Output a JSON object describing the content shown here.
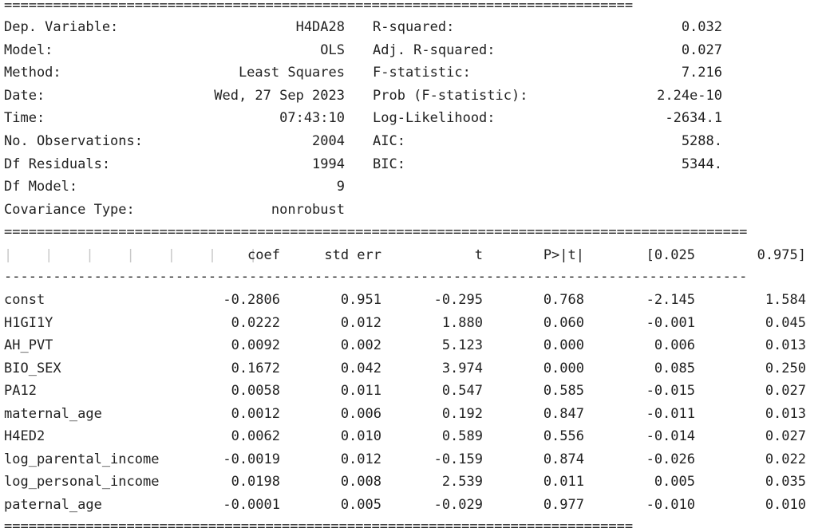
{
  "separators": {
    "double_top": "=============================================================================",
    "double_mid": "===========================================================================================",
    "dash": "-------------------------------------------------------------------------------------------",
    "double_bottom": "============================================================================="
  },
  "summary": {
    "left": [
      {
        "label": "Dep. Variable:",
        "value": "H4DA28"
      },
      {
        "label": "Model:",
        "value": "OLS"
      },
      {
        "label": "Method:",
        "value": "Least Squares"
      },
      {
        "label": "Date:",
        "value": "Wed, 27 Sep 2023"
      },
      {
        "label": "Time:",
        "value": "07:43:10"
      },
      {
        "label": "No. Observations:",
        "value": "2004"
      },
      {
        "label": "Df Residuals:",
        "value": "1994"
      },
      {
        "label": "Df Model:",
        "value": "9"
      },
      {
        "label": "Covariance Type:",
        "value": "nonrobust"
      }
    ],
    "right": [
      {
        "label": "R-squared:",
        "value": "0.032"
      },
      {
        "label": "Adj. R-squared:",
        "value": "0.027"
      },
      {
        "label": "F-statistic:",
        "value": "7.216"
      },
      {
        "label": "Prob (F-statistic):",
        "value": "2.24e-10"
      },
      {
        "label": "Log-Likelihood:",
        "value": "-2634.1"
      },
      {
        "label": "AIC:",
        "value": "5288."
      },
      {
        "label": "BIC:",
        "value": "5344."
      }
    ]
  },
  "coef_table": {
    "headers": [
      "coef",
      "std err",
      "t",
      "P>|t|",
      "[0.025",
      "0.975]"
    ],
    "rows": [
      {
        "name": "const",
        "coef": "-0.2806",
        "std_err": "0.951",
        "t": "-0.295",
        "p": "0.768",
        "lo": "-2.145",
        "hi": "1.584"
      },
      {
        "name": "H1GI1Y",
        "coef": "0.0222",
        "std_err": "0.012",
        "t": "1.880",
        "p": "0.060",
        "lo": "-0.001",
        "hi": "0.045"
      },
      {
        "name": "AH_PVT",
        "coef": "0.0092",
        "std_err": "0.002",
        "t": "5.123",
        "p": "0.000",
        "lo": "0.006",
        "hi": "0.013"
      },
      {
        "name": "BIO_SEX",
        "coef": "0.1672",
        "std_err": "0.042",
        "t": "3.974",
        "p": "0.000",
        "lo": "0.085",
        "hi": "0.250"
      },
      {
        "name": "PA12",
        "coef": "0.0058",
        "std_err": "0.011",
        "t": "0.547",
        "p": "0.585",
        "lo": "-0.015",
        "hi": "0.027"
      },
      {
        "name": "maternal_age",
        "coef": "0.0012",
        "std_err": "0.006",
        "t": "0.192",
        "p": "0.847",
        "lo": "-0.011",
        "hi": "0.013"
      },
      {
        "name": "H4ED2",
        "coef": "0.0062",
        "std_err": "0.010",
        "t": "0.589",
        "p": "0.556",
        "lo": "-0.014",
        "hi": "0.027"
      },
      {
        "name": "log_parental_income",
        "coef": "-0.0019",
        "std_err": "0.012",
        "t": "-0.159",
        "p": "0.874",
        "lo": "-0.026",
        "hi": "0.022"
      },
      {
        "name": "log_personal_income",
        "coef": "0.0198",
        "std_err": "0.008",
        "t": "2.539",
        "p": "0.011",
        "lo": "0.005",
        "hi": "0.035"
      },
      {
        "name": "paternal_age",
        "coef": "-0.0001",
        "std_err": "0.005",
        "t": "-0.029",
        "p": "0.977",
        "lo": "-0.010",
        "hi": "0.010"
      }
    ]
  }
}
